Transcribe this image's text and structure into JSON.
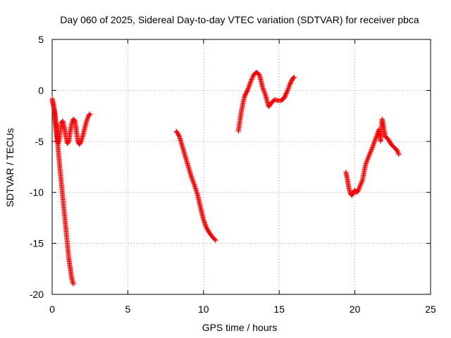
{
  "chart_data": {
    "type": "scatter",
    "title": "Day 060 of 2025, Sidereal Day-to-day VTEC variation (SDTVAR) for receiver pbca",
    "xlabel": "GPS time / hours",
    "ylabel": "SDTVAR / TECUs",
    "xlim": [
      0,
      25
    ],
    "ylim": [
      -20,
      5
    ],
    "xticks": [
      0,
      5,
      10,
      15,
      20,
      25
    ],
    "yticks": [
      5,
      0,
      -5,
      -10,
      -15,
      -20
    ],
    "xtick_labels": [
      "0",
      "5",
      "10",
      "15",
      "20",
      "25"
    ],
    "ytick_labels": [
      "5",
      "0",
      "-5",
      "-10",
      "-15",
      "-20"
    ],
    "grid": true,
    "marker": "plus",
    "color": "#ff0000",
    "series": [
      {
        "name": "segment-1-diving-track",
        "x": [
          0.0,
          0.1,
          0.2,
          0.3,
          0.4,
          0.5,
          0.6,
          0.7,
          0.8,
          0.9,
          1.0,
          1.1,
          1.2,
          1.3,
          1.4
        ],
        "y": [
          -0.8,
          -1.5,
          -2.5,
          -4.0,
          -5.8,
          -7.5,
          -9.0,
          -10.5,
          -12.0,
          -13.5,
          -15.0,
          -16.5,
          -17.5,
          -18.5,
          -19.0
        ]
      },
      {
        "name": "segment-1-oscillating-track",
        "x": [
          0.0,
          0.1,
          0.2,
          0.3,
          0.4,
          0.5,
          0.6,
          0.7,
          0.8,
          0.9,
          1.0,
          1.1,
          1.2,
          1.3,
          1.4,
          1.5,
          1.6,
          1.7,
          1.8,
          1.9,
          2.0,
          2.1,
          2.2,
          2.3,
          2.4,
          2.5
        ],
        "y": [
          -1.0,
          -1.5,
          -3.0,
          -4.5,
          -5.2,
          -4.5,
          -3.2,
          -3.0,
          -3.6,
          -4.5,
          -5.2,
          -5.0,
          -4.0,
          -3.2,
          -2.8,
          -3.0,
          -4.0,
          -5.0,
          -5.3,
          -5.0,
          -4.6,
          -4.0,
          -3.4,
          -2.9,
          -2.5,
          -2.3
        ]
      },
      {
        "name": "segment-2",
        "x": [
          8.2,
          8.4,
          8.6,
          8.8,
          9.0,
          9.2,
          9.4,
          9.6,
          9.8,
          10.0,
          10.2,
          10.4,
          10.6,
          10.8
        ],
        "y": [
          -4.0,
          -4.5,
          -5.5,
          -6.5,
          -7.5,
          -8.5,
          -9.3,
          -10.2,
          -11.5,
          -12.7,
          -13.5,
          -14.0,
          -14.4,
          -14.7
        ]
      },
      {
        "name": "segment-3",
        "x": [
          12.3,
          12.5,
          12.7,
          12.9,
          13.1,
          13.3,
          13.5,
          13.7,
          13.9,
          14.1,
          14.3,
          14.5,
          14.7,
          14.9,
          15.1,
          15.3,
          15.5,
          15.7,
          15.9,
          16.0
        ],
        "y": [
          -4.0,
          -2.0,
          -0.6,
          0.0,
          0.8,
          1.5,
          1.8,
          1.5,
          0.3,
          -0.5,
          -1.6,
          -1.2,
          -0.9,
          -1.0,
          -1.0,
          -0.8,
          -0.2,
          0.6,
          1.2,
          1.3
        ]
      },
      {
        "name": "segment-4",
        "x": [
          19.4,
          19.5,
          19.6,
          19.7,
          19.8,
          19.9,
          20.0,
          20.1,
          20.2,
          20.3,
          20.5,
          20.7,
          20.9,
          21.1,
          21.3,
          21.5,
          21.6,
          21.7,
          21.8,
          21.9,
          22.0,
          22.2,
          22.4,
          22.6,
          22.8,
          22.9
        ],
        "y": [
          -8.0,
          -8.7,
          -9.6,
          -10.1,
          -10.3,
          -10.0,
          -9.8,
          -10.0,
          -9.9,
          -9.5,
          -8.8,
          -7.3,
          -6.5,
          -5.8,
          -5.0,
          -4.2,
          -3.8,
          -5.0,
          -2.8,
          -3.7,
          -4.5,
          -4.8,
          -5.3,
          -5.6,
          -5.9,
          -6.3
        ]
      }
    ]
  }
}
